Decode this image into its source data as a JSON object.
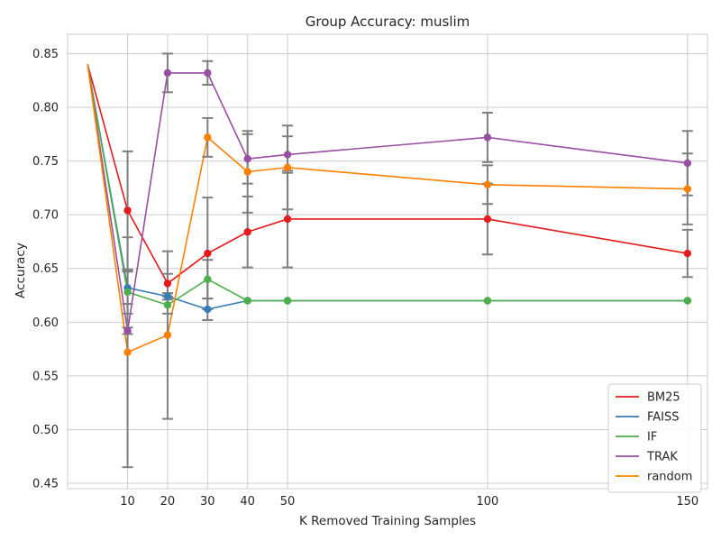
{
  "chart_data": {
    "type": "line",
    "title": "Group Accuracy: muslim",
    "xlabel": "K Removed Training Samples",
    "ylabel": "Accuracy",
    "xlim": [
      -5,
      155
    ],
    "ylim": [
      0.445,
      0.868
    ],
    "x_ticks": [
      10,
      20,
      30,
      40,
      50,
      100,
      150
    ],
    "x_tick_labels": [
      "10",
      "20",
      "30",
      "40",
      "50",
      "100",
      "150"
    ],
    "y_ticks": [
      0.45,
      0.5,
      0.55,
      0.6,
      0.65,
      0.7,
      0.75,
      0.8,
      0.85
    ],
    "y_tick_labels": [
      "0.45",
      "0.50",
      "0.55",
      "0.60",
      "0.65",
      "0.70",
      "0.75",
      "0.80",
      "0.85"
    ],
    "grid": true,
    "legend_position": "bottom-right",
    "baseline": {
      "x": 0,
      "y": 0.84
    },
    "error_bar_color": "#7f7f7f",
    "series": [
      {
        "name": "BM25",
        "color": "#e41a1c",
        "x": [
          10,
          20,
          30,
          40,
          50,
          100,
          150
        ],
        "y": [
          0.704,
          0.636,
          0.664,
          0.684,
          0.696,
          0.696,
          0.664
        ],
        "err": [
          0.055,
          0.009,
          0.052,
          0.033,
          0.045,
          0.033,
          0.022
        ]
      },
      {
        "name": "FAISS",
        "color": "#377eb8",
        "x": [
          10,
          20,
          30,
          40,
          50,
          100,
          150
        ],
        "y": [
          0.632,
          0.624,
          0.612,
          0.62,
          0.62,
          0.62,
          0.62
        ],
        "err": [
          0.015,
          0.003,
          0.01,
          0.0,
          0.0,
          0.0,
          0.0
        ]
      },
      {
        "name": "IF",
        "color": "#4daf4a",
        "x": [
          10,
          20,
          30,
          40,
          50,
          100,
          150
        ],
        "y": [
          0.628,
          0.616,
          0.64,
          0.62,
          0.62,
          0.62,
          0.62
        ],
        "err": [
          0.02,
          0.008,
          0.018,
          0.0,
          0.0,
          0.0,
          0.0
        ]
      },
      {
        "name": "TRAK",
        "color": "#984ea3",
        "x": [
          10,
          20,
          30,
          40,
          50,
          100,
          150
        ],
        "y": [
          0.592,
          0.832,
          0.832,
          0.752,
          0.756,
          0.772,
          0.748
        ],
        "err": [
          0.003,
          0.018,
          0.011,
          0.023,
          0.017,
          0.023,
          0.03
        ]
      },
      {
        "name": "random",
        "color": "#ff7f00",
        "x": [
          10,
          20,
          30,
          40,
          50,
          100,
          150
        ],
        "y": [
          0.572,
          0.588,
          0.772,
          0.74,
          0.744,
          0.728,
          0.724
        ],
        "err": [
          0.107,
          0.078,
          0.018,
          0.038,
          0.039,
          0.018,
          0.033
        ]
      }
    ]
  }
}
